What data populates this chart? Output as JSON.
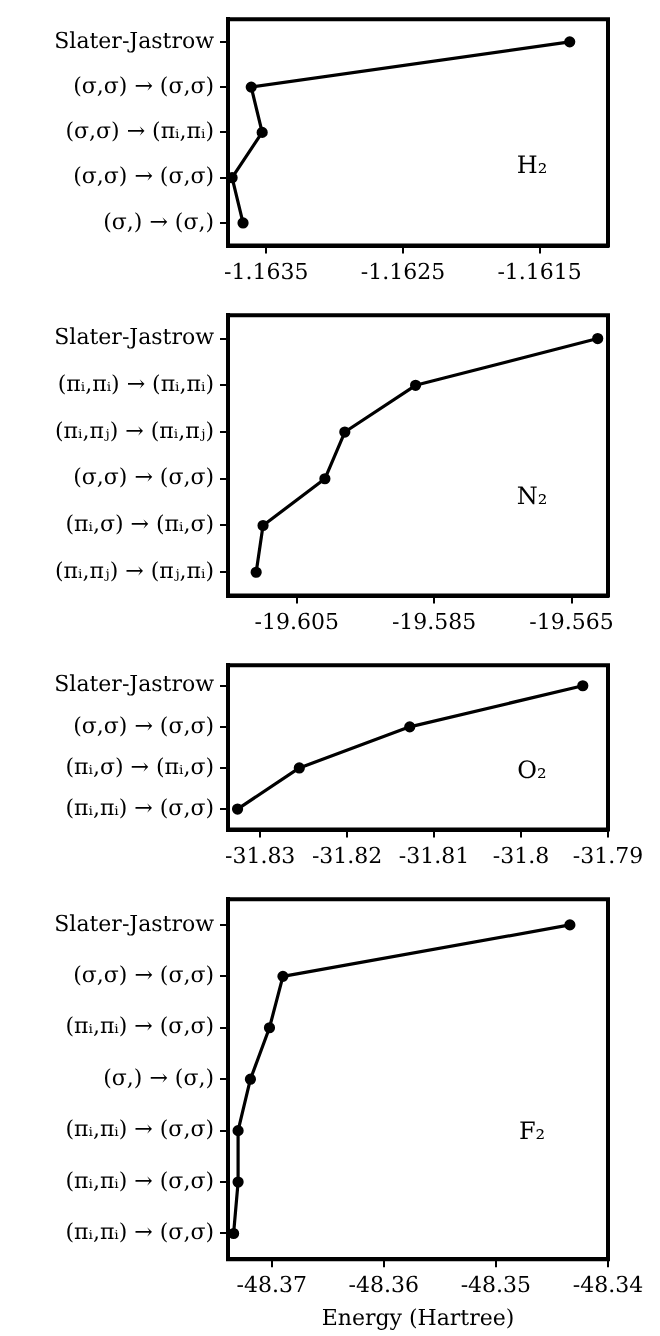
{
  "chart_data": [
    {
      "type": "line",
      "orientation": "horizontal",
      "categories": [
        "Slater-Jastrow",
        "(σ,σ) → (σ,σ)",
        "(σ,σ) → (πᵢ,πᵢ)",
        "(σ,σ) → (σ,σ)",
        "(σ,) → (σ,)"
      ],
      "series": [
        {
          "color": "#000000",
          "values": [
            -1.16128,
            -1.16361,
            -1.16353,
            -1.16375,
            -1.16367
          ]
        }
      ],
      "marker": "circle",
      "xlim": [
        -1.16378,
        -1.161
      ],
      "xticks": [
        -1.1635,
        -1.1625,
        -1.1615
      ],
      "annotations": [
        "H₂"
      ]
    },
    {
      "type": "line",
      "orientation": "horizontal",
      "categories": [
        "Slater-Jastrow",
        "(πᵢ,πᵢ) → (πᵢ,πᵢ)",
        "(πᵢ,πⱼ) → (πᵢ,πⱼ)",
        "(σ,σ) → (σ,σ)",
        "(πᵢ,σ) → (πᵢ,σ)",
        "(πᵢ,πⱼ) → (πⱼ,πᵢ)"
      ],
      "series": [
        {
          "color": "#000000",
          "values": [
            -19.5612,
            -19.5877,
            -19.598,
            -19.6009,
            -19.6099,
            -19.6109
          ]
        }
      ],
      "marker": "circle",
      "xlim": [
        -19.615,
        -19.5597
      ],
      "xticks": [
        -19.605,
        -19.585,
        -19.565
      ],
      "annotations": [
        "N₂"
      ]
    },
    {
      "type": "line",
      "orientation": "horizontal",
      "categories": [
        "Slater-Jastrow",
        "(σ,σ) → (σ,σ)",
        "(πᵢ,σ) → (πᵢ,σ)",
        "(πᵢ,πᵢ) → (σ,σ)"
      ],
      "series": [
        {
          "color": "#000000",
          "values": [
            -31.7929,
            -31.8128,
            -31.8255,
            -31.8326
          ]
        }
      ],
      "marker": "circle",
      "xlim": [
        -31.8337,
        -31.79
      ],
      "xticks": [
        -31.83,
        -31.82,
        -31.81,
        -31.8,
        -31.79
      ],
      "annotations": [
        "O₂"
      ]
    },
    {
      "type": "line",
      "orientation": "horizontal",
      "categories": [
        "Slater-Jastrow",
        "(σ,σ) → (σ,σ)",
        "(πᵢ,πᵢ) → (σ,σ)",
        "(σ,) → (σ,)",
        "(πᵢ,πᵢ) → (σ,σ)",
        "(πᵢ,πᵢ) → (σ,σ)",
        "(πᵢ,πᵢ) → (σ,σ)"
      ],
      "series": [
        {
          "color": "#000000",
          "values": [
            -48.3434,
            -48.369,
            -48.3702,
            -48.3719,
            -48.373,
            -48.373,
            -48.3734
          ]
        }
      ],
      "marker": "circle",
      "xlim": [
        -48.3739,
        -48.34
      ],
      "xticks": [
        -48.37,
        -48.36,
        -48.35,
        -48.34
      ],
      "xlabel": "Energy (Hartree)",
      "annotations": [
        "F₂"
      ]
    }
  ]
}
